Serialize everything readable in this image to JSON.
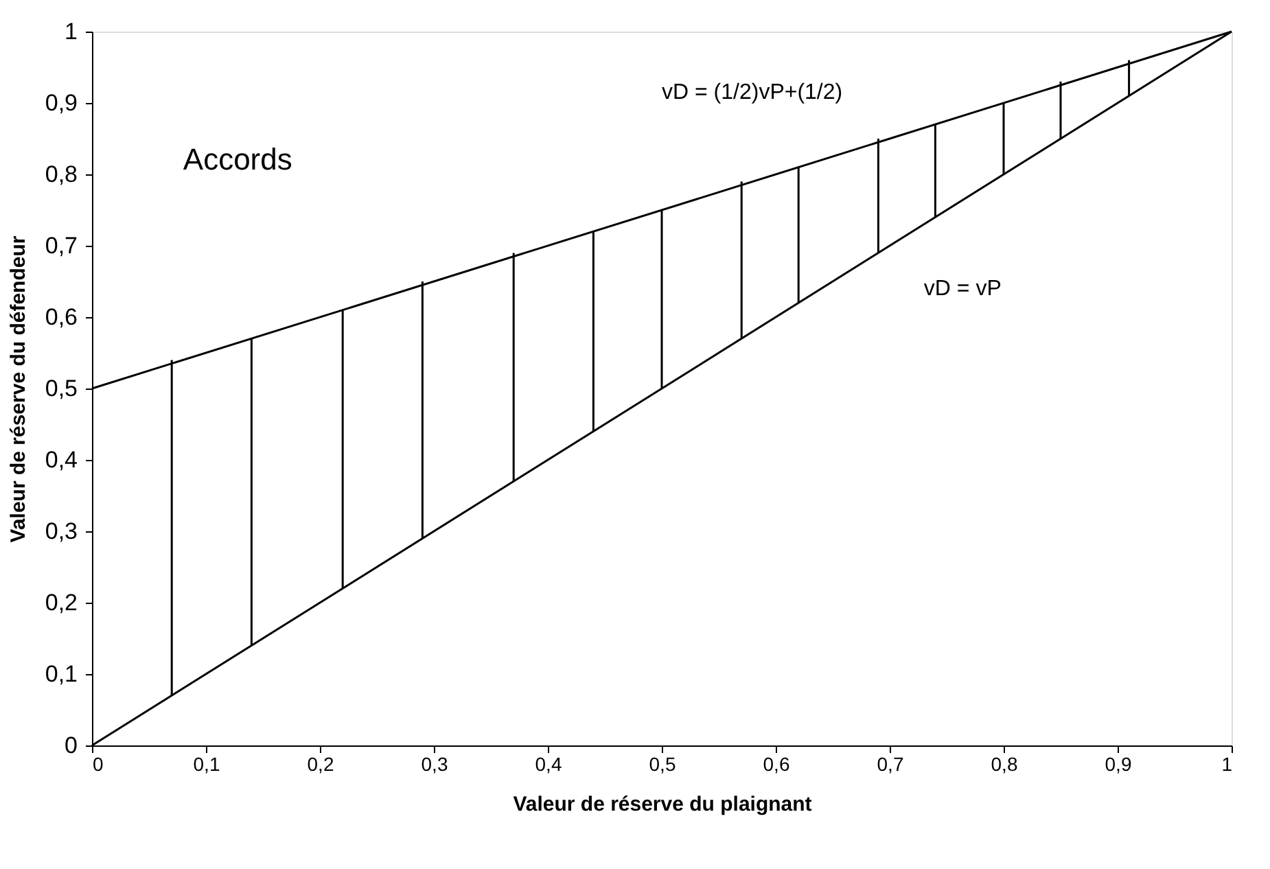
{
  "chart_data": {
    "type": "line",
    "xlabel": "Valeur de réserve du plaignant",
    "ylabel": "Valeur de réserve du défendeur",
    "xlim": [
      0,
      1
    ],
    "ylim": [
      0,
      1
    ],
    "xticks": [
      0,
      {
        "value": 0.1,
        "label": "0,1"
      },
      {
        "value": 0.2,
        "label": "0,2"
      },
      {
        "value": 0.3,
        "label": "0,3"
      },
      {
        "value": 0.4,
        "label": "0,4"
      },
      {
        "value": 0.5,
        "label": "0,5"
      },
      {
        "value": 0.6,
        "label": "0,6"
      },
      {
        "value": 0.7,
        "label": "0,7"
      },
      {
        "value": 0.8,
        "label": "0,8"
      },
      {
        "value": 0.9,
        "label": "0,9"
      },
      1
    ],
    "yticks": [
      0,
      {
        "value": 0.1,
        "label": "0,1"
      },
      {
        "value": 0.2,
        "label": "0,2"
      },
      {
        "value": 0.3,
        "label": "0,3"
      },
      {
        "value": 0.4,
        "label": "0,4"
      },
      {
        "value": 0.5,
        "label": "0,5"
      },
      {
        "value": 0.6,
        "label": "0,6"
      },
      {
        "value": 0.7,
        "label": "0,7"
      },
      {
        "value": 0.8,
        "label": "0,8"
      },
      {
        "value": 0.9,
        "label": "0,9"
      },
      1
    ],
    "grid": false,
    "marker": "none",
    "line_style": "solid",
    "series": [
      {
        "color": "#000000",
        "x": [
          0,
          1
        ],
        "values": [
          0.5,
          1
        ]
      },
      {
        "color": "#000000",
        "x": [
          0,
          1
        ],
        "values": [
          0,
          1
        ]
      },
      {
        "type": "bar",
        "color": "#000000",
        "x": [
          0.07,
          0.14,
          0.22,
          0.29,
          0.37,
          0.44,
          0.5,
          0.57,
          0.62,
          0.69,
          0.74,
          0.8,
          0.85,
          0.91
        ],
        "base": [
          0.07,
          0.14,
          0.22,
          0.29,
          0.37,
          0.44,
          0.5,
          0.57,
          0.62,
          0.69,
          0.74,
          0.8,
          0.85,
          0.91
        ],
        "values": [
          0.47,
          0.43,
          0.39,
          0.36,
          0.32,
          0.28,
          0.25,
          0.22,
          0.19,
          0.16,
          0.13,
          0.1,
          0.08,
          0.05
        ]
      }
    ],
    "annotations": [
      "vD = (1/2)vP+(1/2)",
      "vD = vP",
      "Accords"
    ]
  }
}
